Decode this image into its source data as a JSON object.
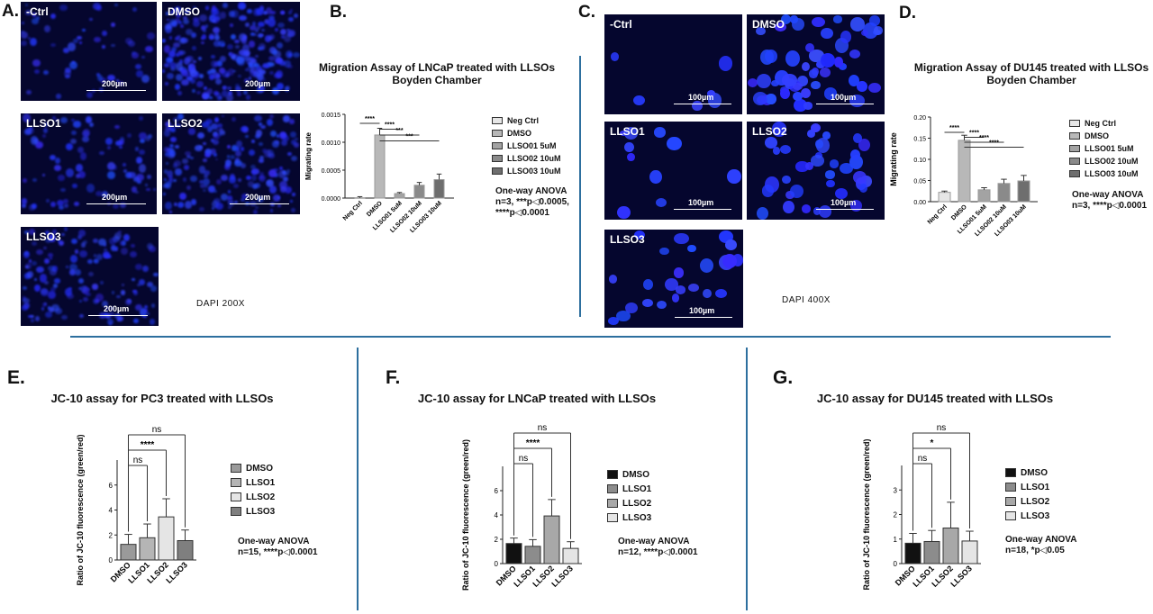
{
  "panels": {
    "A": {
      "label": "A.",
      "caption": "DAPI 200X",
      "images": [
        {
          "label": "-Ctrl",
          "scale": "200µm"
        },
        {
          "label": "DMSO",
          "scale": "200µm"
        },
        {
          "label": "LLSO1",
          "scale": "200µm"
        },
        {
          "label": "LLSO2",
          "scale": "200µm"
        },
        {
          "label": "LLSO3",
          "scale": "200µm"
        }
      ]
    },
    "B": {
      "label": "B.",
      "title_line1": "Migration Assay of LNCaP treated with LLSOs",
      "title_line2": "Boyden Chamber",
      "stats_line1": "One-way ANOVA",
      "stats_line2": "n=3, ***p◁0.0005,",
      "stats_line3": "****p◁0.0001",
      "legend": [
        "Neg Ctrl",
        "DMSO",
        "LLSO01 5uM",
        "LLSO02 10uM",
        "LLSO03 10uM"
      ]
    },
    "C": {
      "label": "C.",
      "caption": "DAPI 400X",
      "images": [
        {
          "label": "-Ctrl",
          "scale": "100µm"
        },
        {
          "label": "DMSO",
          "scale": "100µm"
        },
        {
          "label": "LLSO1",
          "scale": "100µm"
        },
        {
          "label": "LLSO2",
          "scale": "100µm"
        },
        {
          "label": "LLSO3",
          "scale": "100µm"
        }
      ]
    },
    "D": {
      "label": "D.",
      "title_line1": "Migration Assay of DU145 treated with LLSOs",
      "title_line2": "Boyden Chamber",
      "stats_line1": "One-way ANOVA",
      "stats_line2": "n=3, ****p◁0.0001",
      "legend": [
        "Neg Ctrl",
        "DMSO",
        "LLSO01 5uM",
        "LLSO02 10uM",
        "LLSO03 10uM"
      ]
    },
    "E": {
      "label": "E.",
      "title": "JC-10 assay for PC3 treated with LLSOs",
      "stats_line1": "One-way ANOVA",
      "stats_line2": "n=15, ****p◁0.0001",
      "legend": [
        "DMSO",
        "LLSO1",
        "LLSO2",
        "LLSO3"
      ]
    },
    "F": {
      "label": "F.",
      "title": "JC-10 assay for LNCaP treated with LLSOs",
      "stats_line1": "One-way ANOVA",
      "stats_line2": "n=12, ****p◁0.0001",
      "legend": [
        "DMSO",
        "LLSO1",
        "LLSO2",
        "LLSO3"
      ]
    },
    "G": {
      "label": "G.",
      "title": "JC-10 assay for DU145 treated with LLSOs",
      "stats_line1": "One-way ANOVA",
      "stats_line2": "n=18, *p◁0.05",
      "legend": [
        "DMSO",
        "LLSO1",
        "LLSO2",
        "LLSO3"
      ]
    }
  },
  "chart_data": [
    {
      "id": "B",
      "type": "bar",
      "title": "Migration Assay of LNCaP treated with LLSOs Boyden Chamber",
      "ylabel": "Migrating rate",
      "categories": [
        "Neg Ctrl",
        "DMSO",
        "LLSO01 5uM",
        "LLSO02 10uM",
        "LLSO03 10uM"
      ],
      "values": [
        5e-06,
        0.00113,
        8e-05,
        0.00023,
        0.00033
      ],
      "errors": [
        2e-05,
        0.00012,
        2e-05,
        5e-05,
        0.0001
      ],
      "colors": [
        "#e6e6e6",
        "#b8b8b8",
        "#a3a3a3",
        "#8a8a8a",
        "#6e6e6e"
      ],
      "ylim": [
        0,
        0.0015
      ],
      "yticks": [
        "0.0000",
        "0.0005",
        "0.0010",
        "0.0015"
      ],
      "brackets": [
        {
          "from": 0,
          "to": 1,
          "label": "****"
        },
        {
          "from": 1,
          "to": 2,
          "label": "****"
        },
        {
          "from": 1,
          "to": 3,
          "label": "***"
        },
        {
          "from": 1,
          "to": 4,
          "label": "***"
        }
      ]
    },
    {
      "id": "D",
      "type": "bar",
      "title": "Migration Assay of DU145 treated with LLSOs Boyden Chamber",
      "ylabel": "Migrating rate",
      "categories": [
        "Neg Ctrl",
        "DMSO",
        "LLSO01 5uM",
        "LLSO02 10uM",
        "LLSO03 10uM"
      ],
      "values": [
        0.022,
        0.145,
        0.028,
        0.043,
        0.049
      ],
      "errors": [
        0.003,
        0.012,
        0.005,
        0.01,
        0.013
      ],
      "colors": [
        "#e6e6e6",
        "#b8b8b8",
        "#a3a3a3",
        "#8a8a8a",
        "#6e6e6e"
      ],
      "ylim": [
        0,
        0.2
      ],
      "yticks": [
        "0.00",
        "0.05",
        "0.10",
        "0.15",
        "0.20"
      ],
      "brackets": [
        {
          "from": 0,
          "to": 1,
          "label": "****"
        },
        {
          "from": 1,
          "to": 2,
          "label": "****"
        },
        {
          "from": 1,
          "to": 3,
          "label": "****"
        },
        {
          "from": 1,
          "to": 4,
          "label": "****"
        }
      ]
    },
    {
      "id": "E",
      "type": "bar",
      "title": "JC-10 assay for PC3 treated with LLSOs",
      "ylabel": "Ratio of JC-10 fluorescence (green/red)",
      "categories": [
        "DMSO",
        "LLSO1",
        "LLSO2",
        "LLSO3"
      ],
      "values": [
        1.25,
        1.78,
        3.45,
        1.55
      ],
      "errors": [
        0.8,
        1.1,
        1.45,
        0.85
      ],
      "colors": [
        "#9a9a9a",
        "#b5b5b5",
        "#e5e5e5",
        "#7f7f7f"
      ],
      "ylim": [
        0,
        8
      ],
      "yticks": [
        "0",
        "2",
        "4",
        "6"
      ],
      "brackets": [
        {
          "from": 0,
          "to": 1,
          "label": "ns"
        },
        {
          "from": 0,
          "to": 2,
          "label": "****"
        },
        {
          "from": 0,
          "to": 3,
          "label": "ns"
        }
      ]
    },
    {
      "id": "F",
      "type": "bar",
      "title": "JC-10 assay for LNCaP treated with LLSOs",
      "ylabel": "Ratio of JC-10 fluorescence (green/red)",
      "categories": [
        "DMSO",
        "LLSO1",
        "LLSO2",
        "LLSO3"
      ],
      "values": [
        1.65,
        1.42,
        3.92,
        1.25
      ],
      "errors": [
        0.45,
        0.55,
        1.35,
        0.55
      ],
      "colors": [
        "#111111",
        "#8c8c8c",
        "#a8a8a8",
        "#e5e5e5"
      ],
      "ylim": [
        0,
        8
      ],
      "yticks": [
        "0",
        "2",
        "4",
        "6"
      ],
      "brackets": [
        {
          "from": 0,
          "to": 1,
          "label": "ns"
        },
        {
          "from": 0,
          "to": 2,
          "label": "****"
        },
        {
          "from": 0,
          "to": 3,
          "label": "ns"
        }
      ]
    },
    {
      "id": "G",
      "type": "bar",
      "title": "JC-10 assay for DU145 treated with LLSOs",
      "ylabel": "Ratio of JC-10 fluorescence (green/red)",
      "categories": [
        "DMSO",
        "LLSO1",
        "LLSO2",
        "LLSO3"
      ],
      "values": [
        0.83,
        0.9,
        1.45,
        0.92
      ],
      "errors": [
        0.4,
        0.45,
        1.05,
        0.4
      ],
      "colors": [
        "#111111",
        "#8c8c8c",
        "#a8a8a8",
        "#e5e5e5"
      ],
      "ylim": [
        0,
        4
      ],
      "yticks": [
        "0",
        "1",
        "2",
        "3"
      ],
      "brackets": [
        {
          "from": 0,
          "to": 1,
          "label": "ns"
        },
        {
          "from": 0,
          "to": 2,
          "label": "*"
        },
        {
          "from": 0,
          "to": 3,
          "label": "ns"
        }
      ]
    }
  ]
}
